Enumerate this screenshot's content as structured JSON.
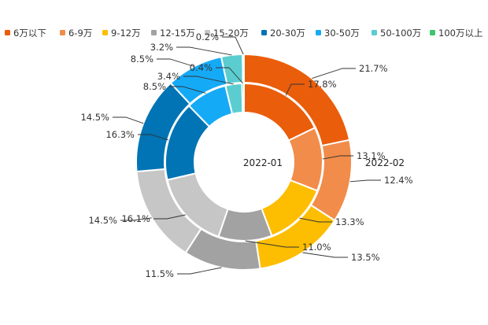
{
  "chart_data": {
    "type": "pie",
    "subtype": "nested-donut",
    "categories": [
      "6万以下",
      "6-9万",
      "9-12万",
      "12-15万",
      "15-20万",
      "20-30万",
      "30-50万",
      "50-100万",
      "100万以上"
    ],
    "colors": [
      "#ea5d0b",
      "#f28c4a",
      "#fdbd00",
      "#a2a2a2",
      "#c6c6c6",
      "#0074b4",
      "#15aaf6",
      "#5bcdd0",
      "#3ec46d"
    ],
    "series": [
      {
        "name": "2022-01",
        "ring": "inner",
        "values": [
          17.8,
          13.1,
          13.3,
          11.0,
          16.1,
          16.3,
          8.5,
          3.4,
          0.4
        ],
        "labels": [
          "17.8%",
          "13.1%",
          "13.3%",
          "11.0%",
          "16.1%",
          "16.3%",
          "8.5%",
          "3.4%",
          "0.4%"
        ]
      },
      {
        "name": "2022-02",
        "ring": "outer",
        "values": [
          21.7,
          12.4,
          13.5,
          11.5,
          14.5,
          14.5,
          8.5,
          3.2,
          0.2
        ],
        "labels": [
          "21.7%",
          "12.4%",
          "13.5%",
          "11.5%",
          "14.5%",
          "14.5%",
          "8.5%",
          "3.2%",
          "0.2%"
        ]
      }
    ],
    "legend_position": "top"
  }
}
